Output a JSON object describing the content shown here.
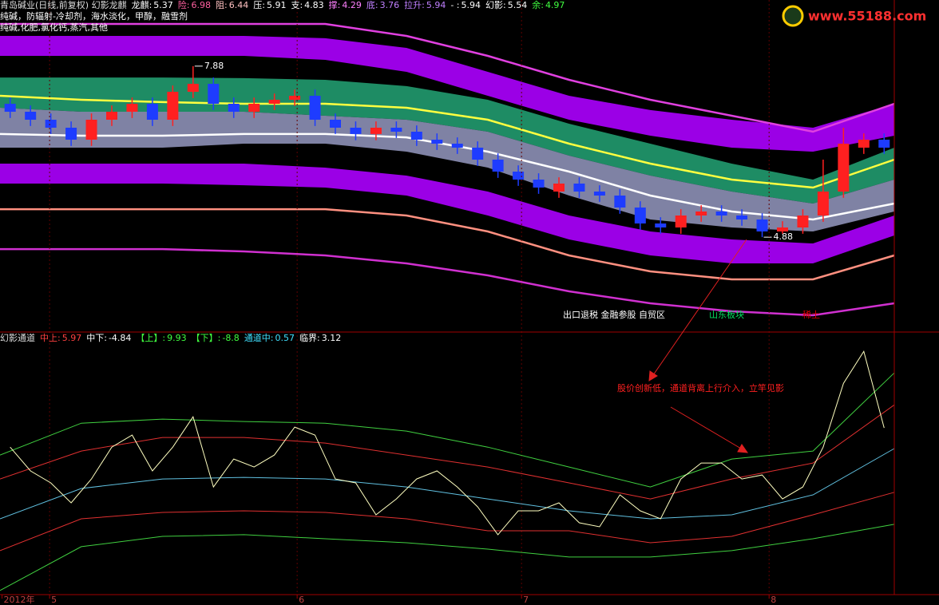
{
  "chart_data": [
    {
      "type": "candlestick",
      "title": "青岛碱业(日线,前复权) 幻影龙麒",
      "indicators": [
        {
          "label": "龙麒:",
          "value": 5.37,
          "color": "#ffffff"
        },
        {
          "label": "险:",
          "value": 6.98,
          "color": "#ff60a0"
        },
        {
          "label": "阻:",
          "value": 6.44,
          "color": "#ffc0c0"
        },
        {
          "label": "压:",
          "value": 5.91,
          "color": "#ffffff"
        },
        {
          "label": "支:",
          "value": 4.83,
          "color": "#ffffff"
        },
        {
          "label": "撑:",
          "value": 4.29,
          "color": "#ff80ff"
        },
        {
          "label": "底:",
          "value": 3.76,
          "color": "#c080ff"
        },
        {
          "label": "拉升:",
          "value": 5.94,
          "color": "#c080ff"
        },
        {
          "label": "- :",
          "value": 5.94,
          "color": "#ffffff"
        },
        {
          "label": "幻影:",
          "value": 5.54,
          "color": "#ffffff"
        },
        {
          "label": "余:",
          "value": 4.97,
          "color": "#40ff40"
        }
      ],
      "notes": [
        "纯碱，防辐射-冷却剂，海水淡化，甲醇，融雪剂",
        "纯碱,化肥,氯化钙,蒸汽,其他"
      ],
      "xlim": [
        -0.5,
        43.5
      ],
      "ylim": [
        3.23,
        9.04
      ],
      "open": [
        7.22,
        7.08,
        6.94,
        6.8,
        6.59,
        6.94,
        7.08,
        7.22,
        6.94,
        7.43,
        7.57,
        7.22,
        7.08,
        7.22,
        7.29,
        7.36,
        6.94,
        6.8,
        6.69,
        6.8,
        6.73,
        6.59,
        6.52,
        6.45,
        6.24,
        6.03,
        5.89,
        5.68,
        5.82,
        5.68,
        5.61,
        5.4,
        5.12,
        5.05,
        5.26,
        5.33,
        5.26,
        5.19,
        4.98,
        5.05,
        5.26,
        5.68,
        6.45,
        6.59
      ],
      "high": [
        7.33,
        7.19,
        7.05,
        6.91,
        7.05,
        7.19,
        7.33,
        7.33,
        7.54,
        7.88,
        7.68,
        7.33,
        7.33,
        7.4,
        7.47,
        7.47,
        7.05,
        6.91,
        6.91,
        6.91,
        6.84,
        6.7,
        6.63,
        6.56,
        6.35,
        6.14,
        6.0,
        5.93,
        5.93,
        5.79,
        5.72,
        5.51,
        5.23,
        5.37,
        5.44,
        5.44,
        5.37,
        5.3,
        5.16,
        5.37,
        6.24,
        6.8,
        6.7,
        6.7
      ],
      "low": [
        6.97,
        6.83,
        6.69,
        6.48,
        6.48,
        6.83,
        6.97,
        6.83,
        6.83,
        7.32,
        7.11,
        6.97,
        6.97,
        7.11,
        7.18,
        6.83,
        6.69,
        6.58,
        6.58,
        6.62,
        6.48,
        6.41,
        6.34,
        6.13,
        5.92,
        5.78,
        5.64,
        5.57,
        5.57,
        5.5,
        5.29,
        5.01,
        4.94,
        4.94,
        5.15,
        5.15,
        5.08,
        4.88,
        4.94,
        4.94,
        5.15,
        5.57,
        6.34,
        6.34
      ],
      "close": [
        7.08,
        6.94,
        6.8,
        6.59,
        6.94,
        7.08,
        7.22,
        6.94,
        7.43,
        7.57,
        7.22,
        7.08,
        7.22,
        7.29,
        7.36,
        6.94,
        6.8,
        6.69,
        6.8,
        6.73,
        6.59,
        6.52,
        6.45,
        6.24,
        6.03,
        5.89,
        5.75,
        5.82,
        5.68,
        5.61,
        5.4,
        5.12,
        5.05,
        5.26,
        5.33,
        5.26,
        5.19,
        4.98,
        5.05,
        5.26,
        5.68,
        6.52,
        6.59,
        6.45
      ],
      "up_color": "#ff2020",
      "down_color": "#1e3cff",
      "band_x": [
        -0.5,
        3.5,
        7.5,
        11.5,
        15.5,
        19.5,
        23.5,
        27.5,
        31.5,
        35.5,
        39.5,
        43.5
      ],
      "bands": [
        {
          "color": "#9b00e6",
          "upper": [
            8.41,
            8.41,
            8.41,
            8.41,
            8.37,
            8.2,
            7.78,
            7.36,
            7.11,
            6.94,
            6.8,
            7.22
          ],
          "lower": [
            8.06,
            8.06,
            8.06,
            8.06,
            7.99,
            7.78,
            7.36,
            6.94,
            6.66,
            6.45,
            6.38,
            6.66
          ]
        },
        {
          "color": "#1e8c64",
          "upper": [
            7.68,
            7.68,
            7.68,
            7.67,
            7.64,
            7.53,
            7.29,
            6.87,
            6.52,
            6.17,
            5.89,
            6.45
          ],
          "lower": [
            7.15,
            7.08,
            7.08,
            7.08,
            7.01,
            6.94,
            6.73,
            6.31,
            5.96,
            5.68,
            5.47,
            5.89
          ]
        },
        {
          "color": "#7f82a4",
          "upper": [
            7.15,
            7.08,
            7.08,
            7.08,
            7.01,
            6.94,
            6.73,
            6.31,
            5.96,
            5.68,
            5.47,
            5.89
          ],
          "lower": [
            6.45,
            6.45,
            6.45,
            6.52,
            6.52,
            6.38,
            6.1,
            5.61,
            5.19,
            5.05,
            4.98,
            5.33
          ]
        },
        {
          "color": "#9b00e6",
          "upper": [
            6.17,
            6.17,
            6.17,
            6.17,
            6.1,
            5.96,
            5.68,
            5.26,
            4.98,
            4.84,
            4.77,
            5.26
          ],
          "lower": [
            5.82,
            5.82,
            5.82,
            5.79,
            5.75,
            5.61,
            5.26,
            4.84,
            4.56,
            4.42,
            4.42,
            4.91
          ]
        }
      ],
      "lines": [
        {
          "color": "#e040e0",
          "values": [
            8.62,
            8.62,
            8.62,
            8.62,
            8.62,
            8.41,
            8.06,
            7.64,
            7.29,
            7.01,
            6.73,
            7.22
          ]
        },
        {
          "color": "#ffff40",
          "values": [
            7.36,
            7.29,
            7.25,
            7.22,
            7.22,
            7.15,
            6.94,
            6.52,
            6.17,
            5.89,
            5.75,
            6.24
          ]
        },
        {
          "color": "#ffffff",
          "values": [
            6.69,
            6.66,
            6.66,
            6.69,
            6.69,
            6.63,
            6.38,
            6.03,
            5.61,
            5.33,
            5.19,
            5.47
          ]
        },
        {
          "color": "#ff9080",
          "values": [
            5.37,
            5.37,
            5.37,
            5.37,
            5.37,
            5.26,
            4.98,
            4.56,
            4.28,
            4.14,
            4.14,
            4.56
          ]
        },
        {
          "color": "#d030d0",
          "values": [
            4.67,
            4.67,
            4.67,
            4.63,
            4.56,
            4.42,
            4.21,
            3.93,
            3.72,
            3.58,
            3.51,
            3.72
          ]
        }
      ],
      "extremes": [
        {
          "index": 9,
          "value": 7.88
        },
        {
          "index": 37,
          "value": 4.88
        }
      ],
      "annotations": [
        {
          "text": "出口退税 金融参股 自贸区",
          "color": "#ffffff"
        },
        {
          "text": "山东板块",
          "color": "#00e060"
        },
        {
          "text": "稀土",
          "color": "#e00000"
        }
      ]
    },
    {
      "type": "line",
      "title": "幻影通道",
      "indicators": [
        {
          "label": "中上:",
          "value": 5.97,
          "color": "#ff4040"
        },
        {
          "label": "中下:",
          "value": -4.84,
          "color": "#ffffff"
        },
        {
          "label": "【上】:",
          "value": 9.93,
          "color": "#40ff40"
        },
        {
          "label": "【下】:",
          "value": -8.8,
          "color": "#40ff40"
        },
        {
          "label": "通道中:",
          "value": 0.57,
          "color": "#40e0ff"
        },
        {
          "label": "临界:",
          "value": 3.12,
          "color": "#ffffff"
        }
      ],
      "xlim": [
        -0.5,
        43.5
      ],
      "ylim": [
        -17.5,
        13.6
      ],
      "xticks": [
        {
          "value": -0.4,
          "label": "2012年"
        },
        {
          "value": 1.94,
          "label": "5"
        },
        {
          "value": 14.12,
          "label": "6"
        },
        {
          "value": 25.16,
          "label": "7"
        },
        {
          "value": 37.34,
          "label": "8"
        }
      ],
      "band_x": [
        -0.5,
        3.5,
        7.5,
        11.5,
        15.5,
        19.5,
        23.5,
        27.5,
        31.5,
        35.5,
        39.5,
        43.5
      ],
      "channels": [
        {
          "color": "#40d040",
          "values": [
            -0.23,
            3.71,
            4.21,
            3.91,
            3.71,
            2.73,
            0.75,
            -1.71,
            -4.18,
            -0.73,
            0.26,
            9.93
          ]
        },
        {
          "color": "#e03030",
          "values": [
            -3.19,
            0.26,
            1.94,
            1.94,
            1.25,
            -0.23,
            -1.71,
            -3.68,
            -5.66,
            -3.19,
            -1.22,
            5.97
          ]
        },
        {
          "color": "#60c0e0",
          "values": [
            -8.12,
            -4.37,
            -3.19,
            -3.0,
            -3.19,
            -4.18,
            -5.66,
            -7.13,
            -8.12,
            -7.63,
            -5.16,
            0.57
          ]
        },
        {
          "color": "#e03030",
          "values": [
            -12.06,
            -8.12,
            -7.33,
            -7.13,
            -7.33,
            -8.12,
            -9.6,
            -9.6,
            -11.08,
            -10.29,
            -7.63,
            -4.84
          ]
        },
        {
          "color": "#40d040",
          "values": [
            -16.99,
            -11.57,
            -10.29,
            -10.09,
            -10.59,
            -11.08,
            -11.87,
            -12.85,
            -12.85,
            -12.06,
            -10.59,
            -8.8
          ]
        }
      ],
      "series": [
        {
          "color": "#ffffc0",
          "values": [
            0.75,
            -2.2,
            -3.68,
            -6.15,
            -3.19,
            0.75,
            2.24,
            -2.2,
            0.75,
            4.5,
            -4.18,
            -0.73,
            -1.71,
            -0.23,
            3.22,
            2.24,
            -3.19,
            -3.68,
            -7.63,
            -5.66,
            -3.19,
            -2.2,
            -4.18,
            -6.64,
            -10.09,
            -7.13,
            -7.13,
            -6.15,
            -8.61,
            -9.11,
            -5.16,
            -7.13,
            -8.12,
            -3.19,
            -1.22,
            -1.22,
            -3.19,
            -2.7,
            -5.66,
            -4.18,
            0.75,
            8.64,
            12.59,
            3.12
          ]
        }
      ],
      "annotations": [
        {
          "text": "股价创新低，通道背离上行介入，立竿见影",
          "color": "#ff2020"
        }
      ]
    }
  ],
  "watermark": "www.55188.com"
}
